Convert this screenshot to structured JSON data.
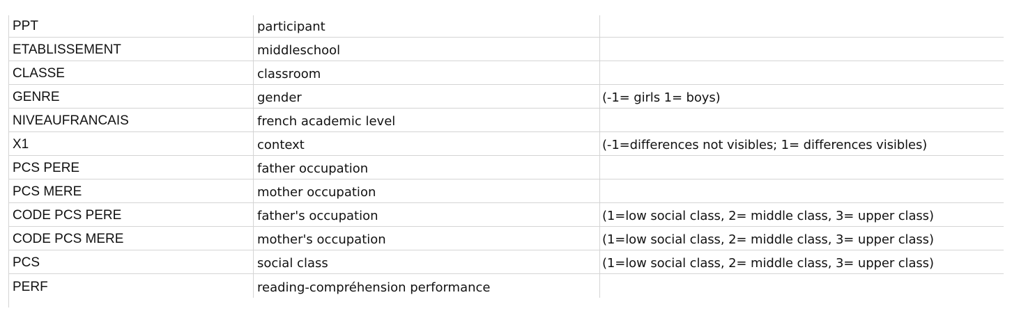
{
  "rows": [
    {
      "col1": "PPT",
      "col2": "participant",
      "col3": ""
    },
    {
      "col1": "ETABLISSEMENT",
      "col2": "middleschool",
      "col3": ""
    },
    {
      "col1": "CLASSE",
      "col2": "classroom",
      "col3": ""
    },
    {
      "col1": "GENRE",
      "col2": "gender",
      "col3": "(-1= girls 1= boys)"
    },
    {
      "col1": "NIVEAUFRANCAIS",
      "col2": "french academic level",
      "col3": ""
    },
    {
      "col1": "X1",
      "col2": "context",
      "col3": "(-1=differences not visibles; 1= differences visibles)"
    },
    {
      "col1": "PCS PERE",
      "col2": "father occupation",
      "col3": ""
    },
    {
      "col1": "PCS MERE",
      "col2": "mother occupation",
      "col3": ""
    },
    {
      "col1": "CODE PCS PERE",
      "col2": "father's occupation",
      "col3": "(1=low social class, 2= middle class, 3= upper class)"
    },
    {
      "col1": "CODE PCS MERE",
      "col2": "mother's occupation",
      "col3": "(1=low social class, 2= middle class, 3= upper class)"
    },
    {
      "col1": "PCS",
      "col2": "social class",
      "col3": "(1=low social class, 2= middle class, 3= upper class)"
    },
    {
      "col1": "PERF",
      "col2": "reading-compréhension performance",
      "col3": ""
    }
  ]
}
